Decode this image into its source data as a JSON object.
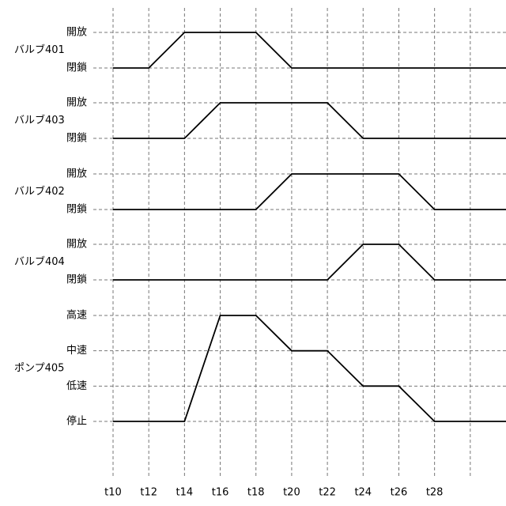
{
  "chart_data": [
    {
      "type": "line",
      "ylabel": "バルブ401",
      "color": "#000000",
      "xlim": [
        10,
        32
      ],
      "ylim": [
        0,
        1
      ],
      "yticks": [
        {
          "value": 0,
          "label": "閉鎖"
        },
        {
          "value": 1,
          "label": "開放"
        }
      ],
      "x": [
        10,
        12,
        14,
        18,
        20,
        32
      ],
      "values": [
        0,
        0,
        1,
        1,
        0,
        0
      ]
    },
    {
      "type": "line",
      "ylabel": "バルブ403",
      "color": "#000000",
      "xlim": [
        10,
        32
      ],
      "ylim": [
        0,
        1
      ],
      "yticks": [
        {
          "value": 0,
          "label": "閉鎖"
        },
        {
          "value": 1,
          "label": "開放"
        }
      ],
      "x": [
        10,
        14,
        16,
        22,
        24,
        32
      ],
      "values": [
        0,
        0,
        1,
        1,
        0,
        0
      ]
    },
    {
      "type": "line",
      "ylabel": "バルブ402",
      "color": "#000000",
      "xlim": [
        10,
        32
      ],
      "ylim": [
        0,
        1
      ],
      "yticks": [
        {
          "value": 0,
          "label": "閉鎖"
        },
        {
          "value": 1,
          "label": "開放"
        }
      ],
      "x": [
        10,
        18,
        20,
        26,
        28,
        32
      ],
      "values": [
        0,
        0,
        1,
        1,
        0,
        0
      ]
    },
    {
      "type": "line",
      "ylabel": "バルブ404",
      "color": "#000000",
      "xlim": [
        10,
        32
      ],
      "ylim": [
        0,
        1
      ],
      "yticks": [
        {
          "value": 0,
          "label": "閉鎖"
        },
        {
          "value": 1,
          "label": "開放"
        }
      ],
      "x": [
        10,
        22,
        24,
        26,
        28,
        32
      ],
      "values": [
        0,
        0,
        1,
        1,
        0,
        0
      ]
    },
    {
      "type": "line",
      "ylabel": "ポンプ405",
      "color": "#000000",
      "xlim": [
        10,
        32
      ],
      "ylim": [
        0,
        3
      ],
      "yticks": [
        {
          "value": 0,
          "label": "停止"
        },
        {
          "value": 1,
          "label": "低速"
        },
        {
          "value": 2,
          "label": "中速"
        },
        {
          "value": 3,
          "label": "高速"
        }
      ],
      "x": [
        10,
        14,
        16,
        18,
        20,
        22,
        24,
        26,
        28,
        32
      ],
      "values": [
        0,
        0,
        3,
        3,
        2,
        2,
        1,
        1,
        0,
        0
      ],
      "xticks": [
        {
          "value": 10,
          "label": "t10"
        },
        {
          "value": 12,
          "label": "t12"
        },
        {
          "value": 14,
          "label": "t14"
        },
        {
          "value": 16,
          "label": "t16"
        },
        {
          "value": 18,
          "label": "t18"
        },
        {
          "value": 20,
          "label": "t20"
        },
        {
          "value": 22,
          "label": "t22"
        },
        {
          "value": 24,
          "label": "t24"
        },
        {
          "value": 26,
          "label": "t26"
        },
        {
          "value": 28,
          "label": "t28"
        },
        {
          "value": 30,
          "label": null
        }
      ]
    }
  ]
}
